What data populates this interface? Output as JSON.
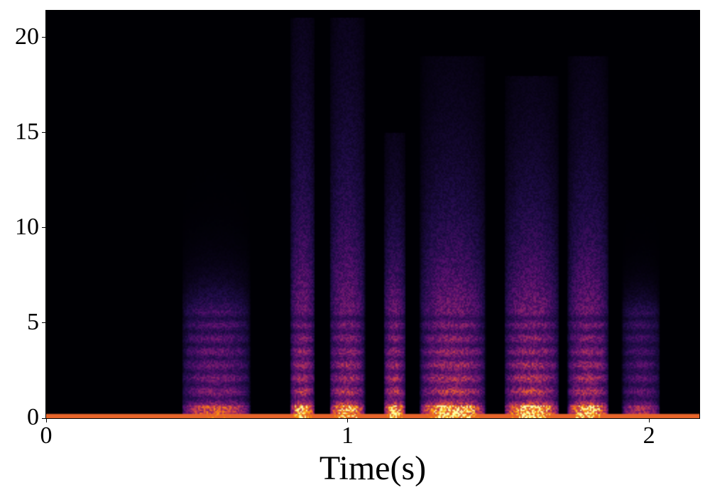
{
  "chart_data": {
    "type": "heatmap",
    "title": "",
    "xlabel": "Time(s)",
    "ylabel": "",
    "xlim": [
      0,
      2.167
    ],
    "ylim": [
      0,
      21.4
    ],
    "xticks": [
      0,
      1,
      2
    ],
    "yticks": [
      0,
      5,
      10,
      15,
      20
    ],
    "colormap": "inferno",
    "background_color": "#000000",
    "grid": false,
    "baseline_band": {
      "freq_max": 0.25,
      "intensity": 0.75
    },
    "segments": [
      {
        "t0": 0.45,
        "t1": 0.7,
        "fmax": 8,
        "peak": 0.7,
        "strand_fmax": 18
      },
      {
        "t0": 0.81,
        "t1": 0.9,
        "fmax": 20,
        "peak": 0.95,
        "strand_fmax": 21
      },
      {
        "t0": 0.94,
        "t1": 1.07,
        "fmax": 20,
        "peak": 0.95,
        "strand_fmax": 21
      },
      {
        "t0": 1.12,
        "t1": 1.2,
        "fmax": 14,
        "peak": 0.95,
        "strand_fmax": 15
      },
      {
        "t0": 1.24,
        "t1": 1.48,
        "fmax": 16,
        "peak": 1.0,
        "strand_fmax": 19
      },
      {
        "t0": 1.52,
        "t1": 1.72,
        "fmax": 16,
        "peak": 1.0,
        "strand_fmax": 18
      },
      {
        "t0": 1.73,
        "t1": 1.88,
        "fmax": 17,
        "peak": 0.95,
        "strand_fmax": 19
      },
      {
        "t0": 1.91,
        "t1": 2.05,
        "fmax": 6,
        "peak": 0.55,
        "strand_fmax": 12
      }
    ]
  }
}
